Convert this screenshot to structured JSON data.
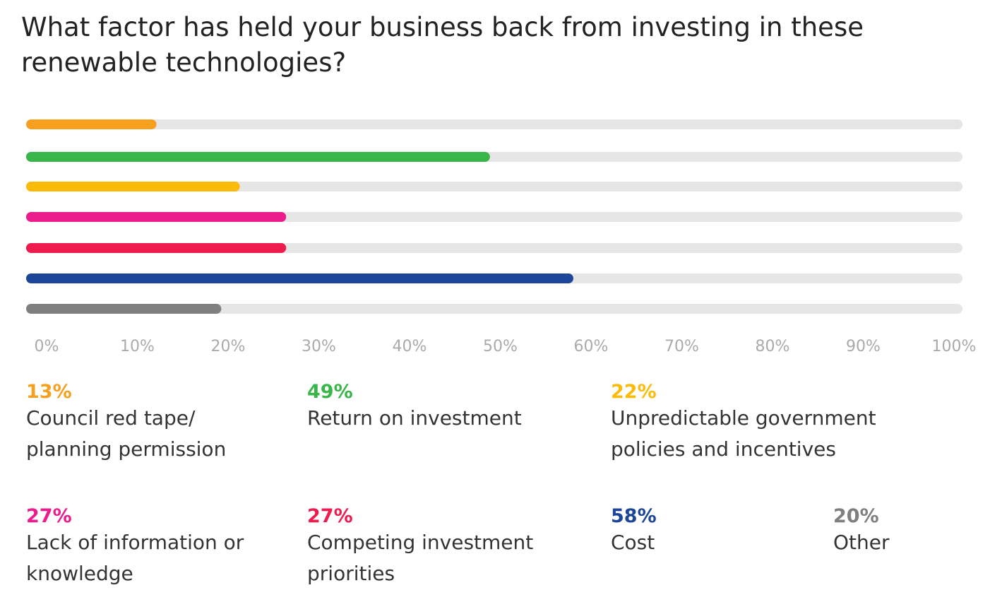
{
  "chart_data": {
    "type": "bar",
    "orientation": "horizontal",
    "title": "What factor has held your business back from investing in these renewable technologies?",
    "categories": [
      "Council red tape/ planning permission",
      "Return on investment",
      "Unpredictable government policies and incentives",
      "Lack of information or knowledge",
      "Competing investment priorities",
      "Cost",
      "Other"
    ],
    "values": [
      13,
      49,
      22,
      27,
      27,
      58,
      20
    ],
    "value_labels": [
      "13%",
      "49%",
      "22%",
      "27%",
      "27%",
      "58%",
      "20%"
    ],
    "colors": [
      "#f6a01f",
      "#3ab54a",
      "#fbbc09",
      "#ec1c8c",
      "#ee1b4f",
      "#1d4598",
      "#7f7f7f"
    ],
    "xlim": [
      0,
      100
    ],
    "xticks": [
      {
        "value": 0,
        "label": "0%"
      },
      {
        "value": 10,
        "label": "10%"
      },
      {
        "value": 20,
        "label": "20%"
      },
      {
        "value": 30,
        "label": "30%"
      },
      {
        "value": 40,
        "label": "40%"
      },
      {
        "value": 50,
        "label": "50%"
      },
      {
        "value": 60,
        "label": "60%"
      },
      {
        "value": 70,
        "label": "70%"
      },
      {
        "value": 80,
        "label": "80%"
      },
      {
        "value": 90,
        "label": "90%"
      },
      {
        "value": 100,
        "label": "100%"
      }
    ]
  }
}
